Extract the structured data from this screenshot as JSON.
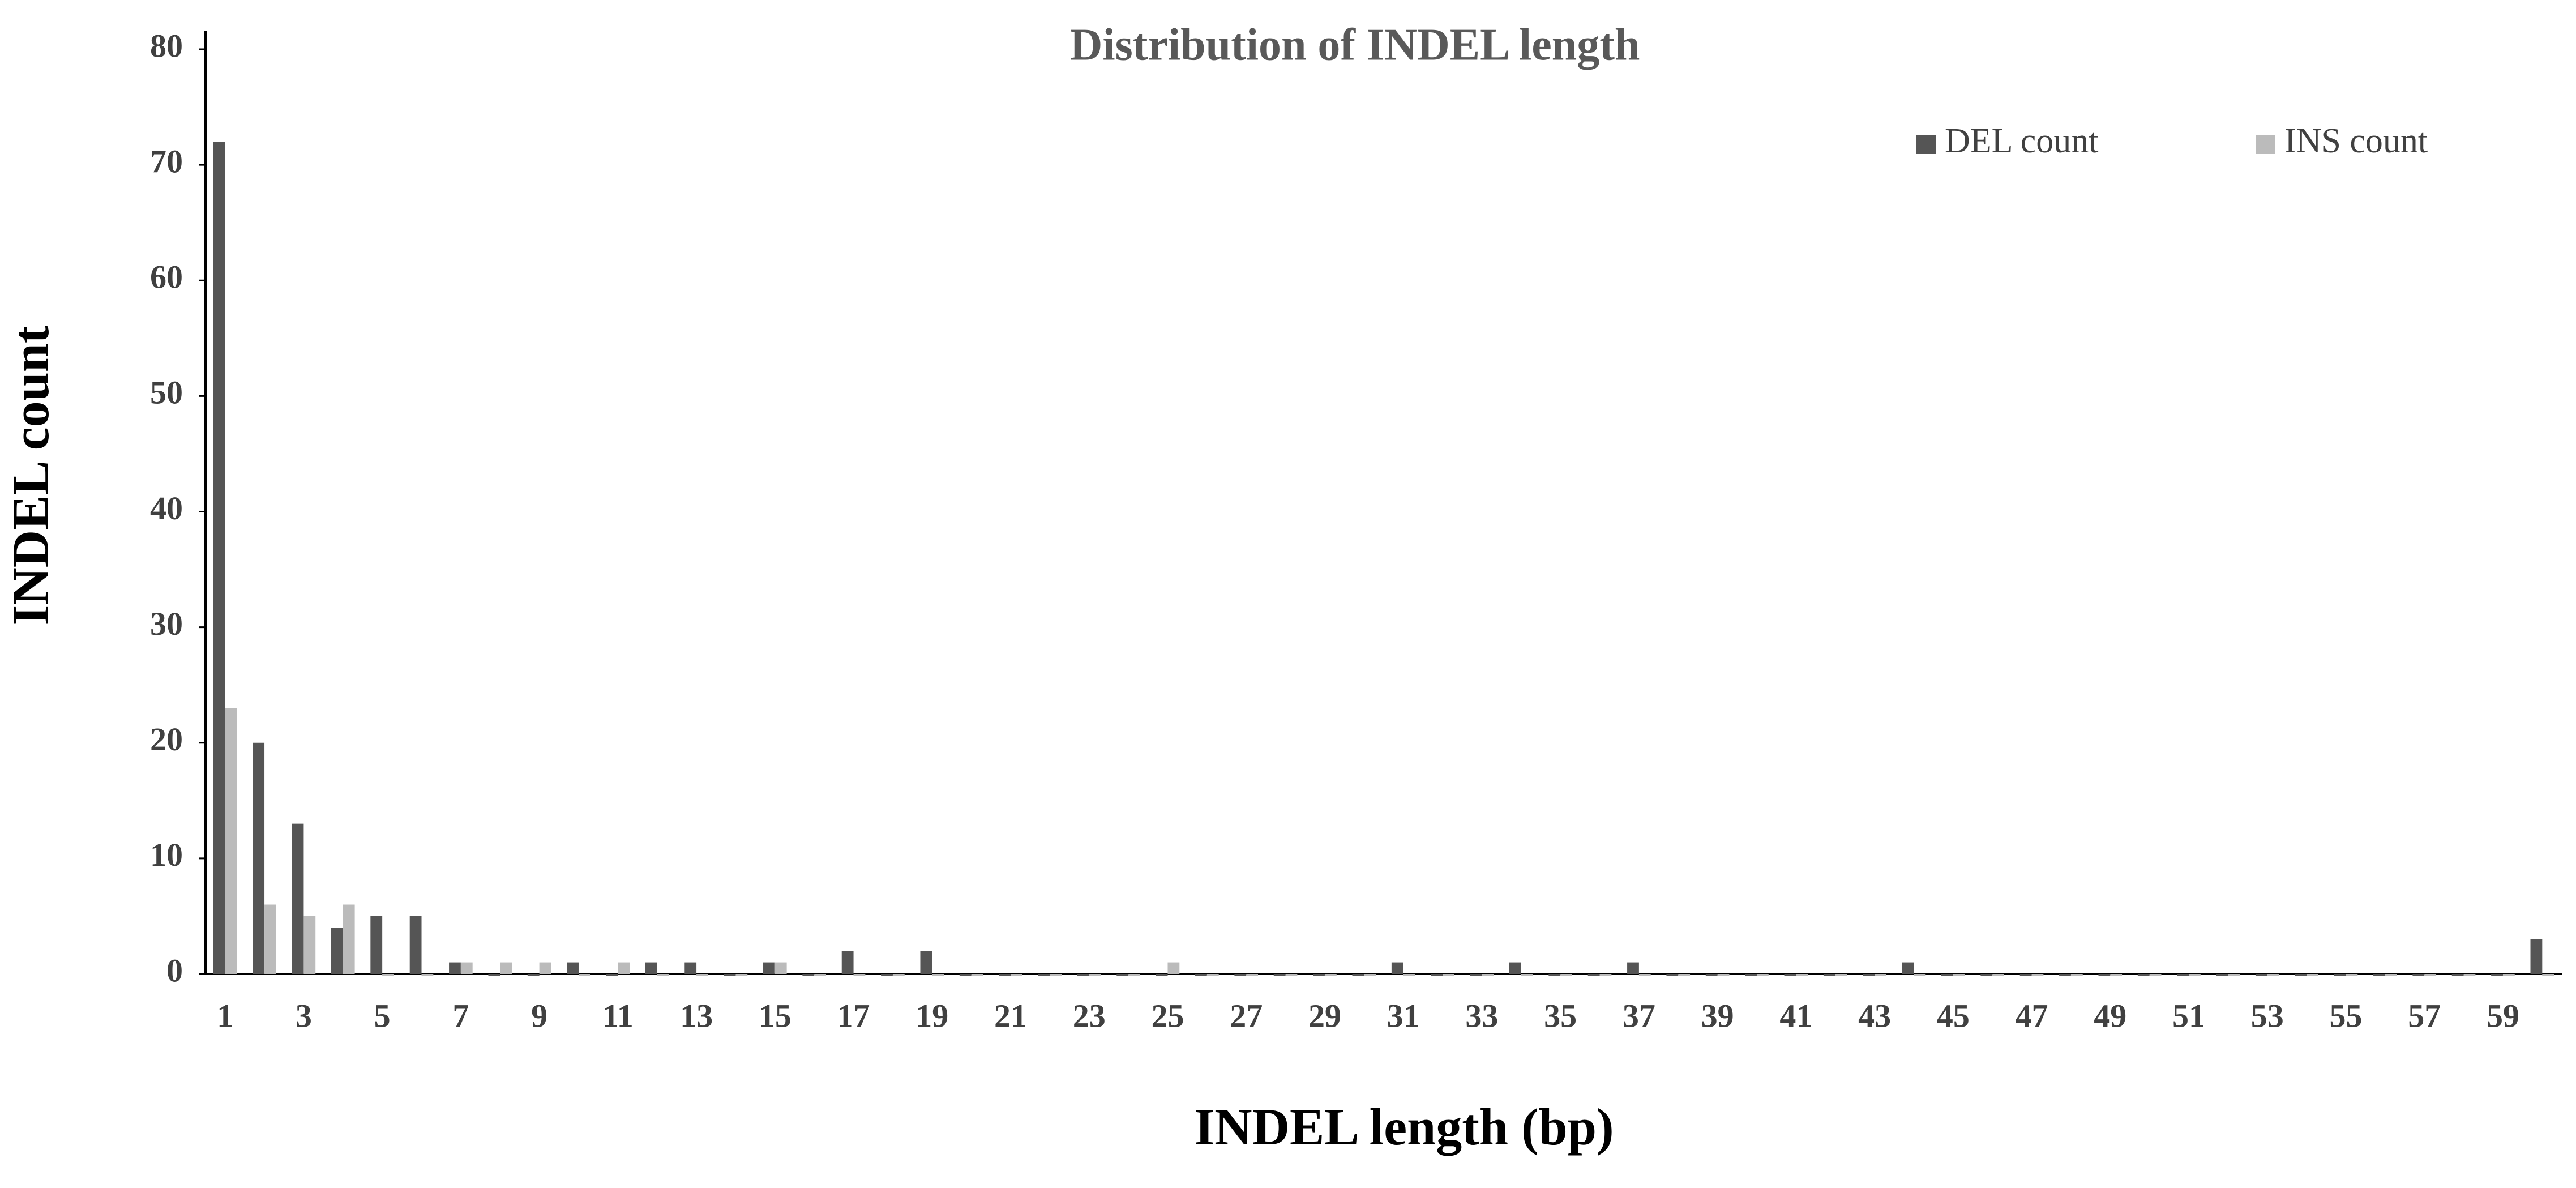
{
  "chart_data": {
    "type": "bar",
    "title": "Distribution of INDEL length",
    "x_label": "INDEL length (bp)",
    "y_label": "INDEL count",
    "categories": [
      "1",
      null,
      "3",
      null,
      "5",
      null,
      "7",
      null,
      "9",
      null,
      "11",
      null,
      "13",
      null,
      "15",
      null,
      "17",
      null,
      "19",
      null,
      "21",
      null,
      "23",
      null,
      "25",
      null,
      "27",
      null,
      "29",
      null,
      "31",
      null,
      "33",
      null,
      "35",
      null,
      "37",
      null,
      "39",
      null,
      "41",
      null,
      "43",
      null,
      "45",
      null,
      "47",
      null,
      "49",
      null,
      "51",
      null,
      "53",
      null,
      "55",
      null,
      "57",
      null,
      "59",
      null
    ],
    "series": [
      {
        "name": "DEL count",
        "color": "#555555",
        "values": [
          72,
          20,
          13,
          4,
          5,
          5,
          1,
          0,
          0,
          1,
          0,
          1,
          1,
          0,
          1,
          0,
          2,
          0,
          2,
          0,
          0,
          0,
          0,
          0,
          0,
          0,
          0,
          0,
          0,
          0,
          1,
          0,
          0,
          1,
          0,
          0,
          1,
          0,
          0,
          0,
          0,
          0,
          0,
          1,
          0,
          0,
          0,
          0,
          0,
          0,
          0,
          0,
          0,
          0,
          0,
          0,
          0,
          0,
          0,
          3
        ]
      },
      {
        "name": "INS count",
        "color": "#bbbbbb",
        "values": [
          23,
          6,
          5,
          6,
          0,
          0,
          1,
          1,
          1,
          0,
          1,
          0,
          0,
          0,
          1,
          0,
          0,
          0,
          0,
          0,
          0,
          0,
          0,
          0,
          1,
          0,
          0,
          0,
          0,
          0,
          0,
          0,
          0,
          0,
          0,
          0,
          0,
          0,
          0,
          0,
          0,
          0,
          0,
          0,
          0,
          0,
          0,
          0,
          0,
          0,
          0,
          0,
          0,
          0,
          0,
          0,
          0,
          0,
          0,
          0
        ]
      }
    ],
    "ylim": [
      0,
      80
    ],
    "yticks": [
      0,
      10,
      20,
      30,
      40,
      50,
      60,
      70,
      80
    ],
    "grid": false,
    "legend": "top-right"
  }
}
